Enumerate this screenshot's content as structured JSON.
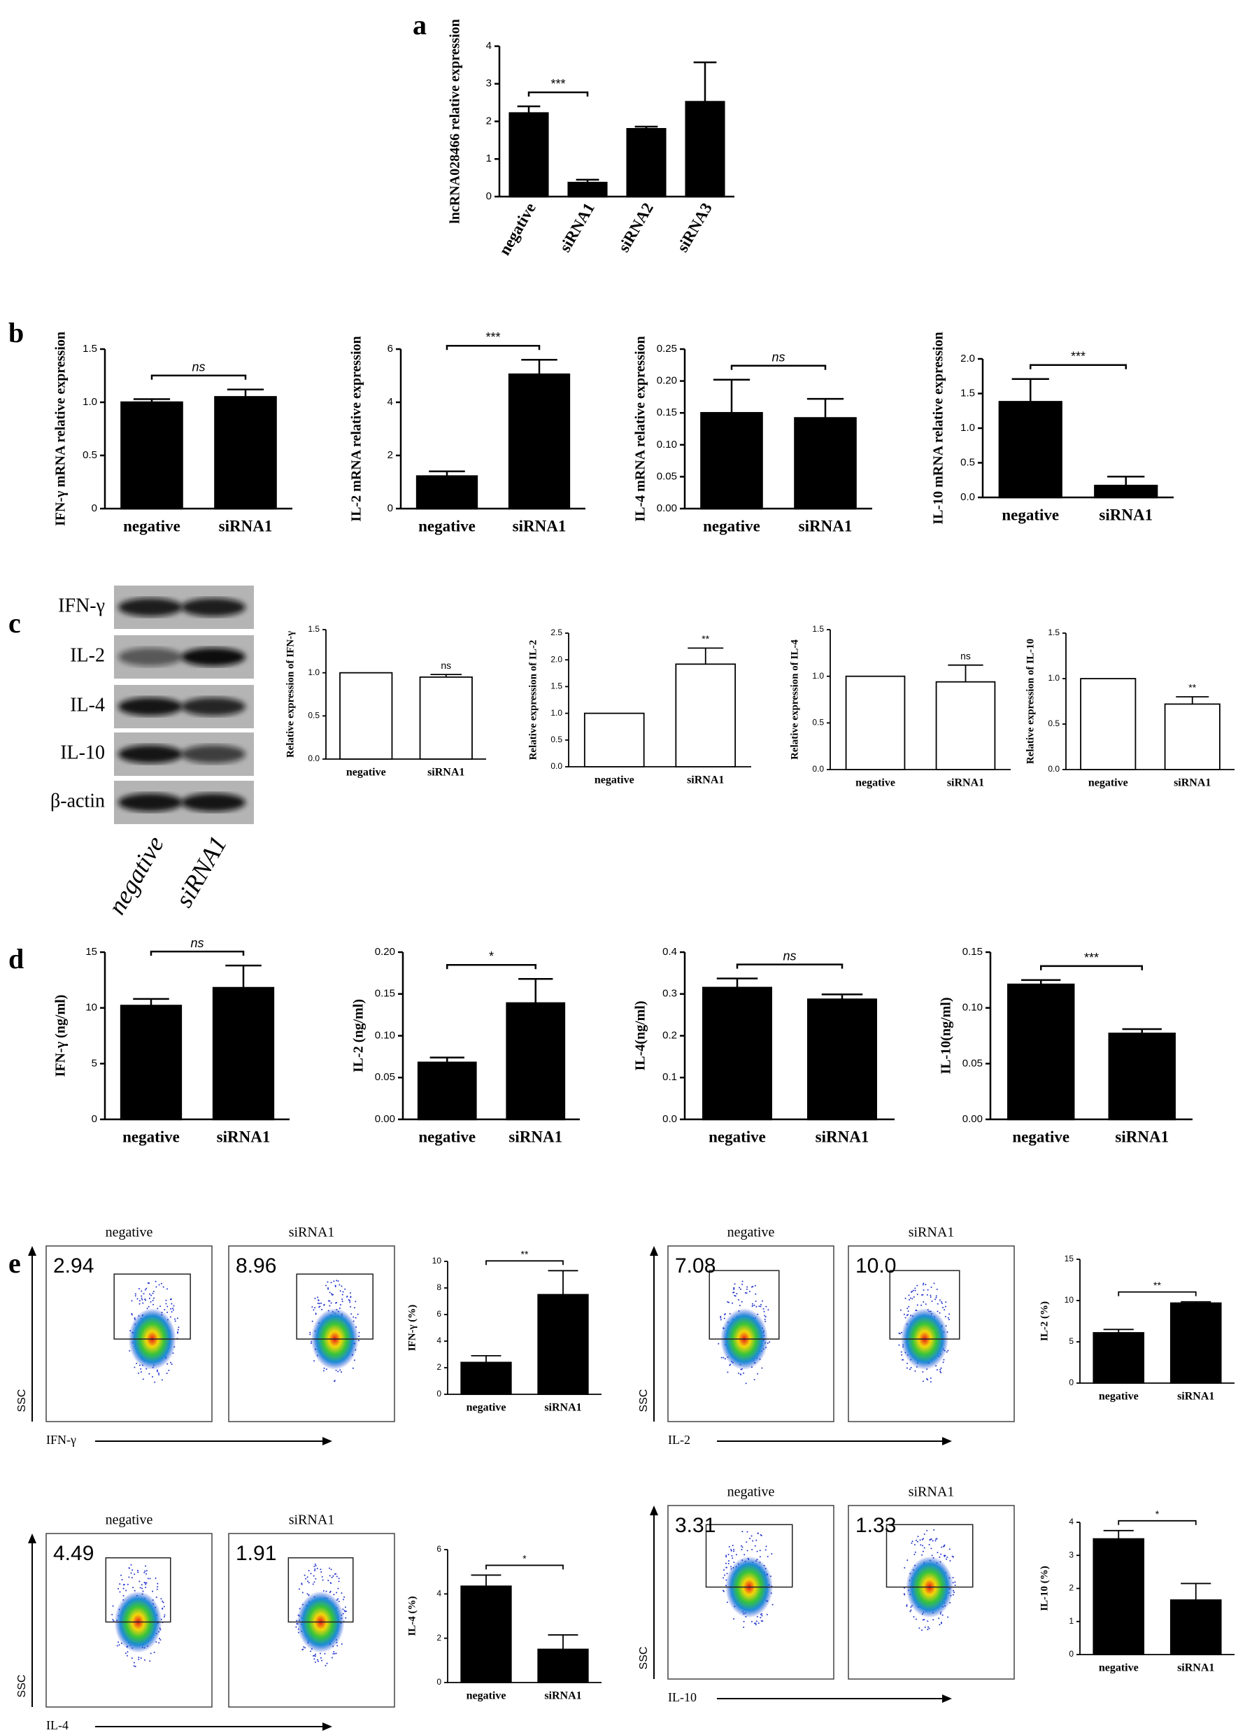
{
  "panel_labels": [
    "a",
    "b",
    "c",
    "d",
    "e"
  ],
  "chart_data": [
    {
      "type": "bar",
      "y_label": "lncRNA028466 relative expression",
      "categories": [
        "negative",
        "siRNA1",
        "siRNA2",
        "siRNA3"
      ],
      "values": [
        2.22,
        0.37,
        1.8,
        2.52
      ],
      "errors": [
        0.18,
        0.08,
        0.06,
        1.05
      ],
      "color": "#000000",
      "ylim": [
        0,
        4
      ],
      "yticks": [
        0,
        1,
        2,
        3,
        4
      ],
      "annotations": [
        {
          "text": "***",
          "bars": [
            0,
            1
          ]
        }
      ]
    },
    {
      "type": "bar",
      "y_label": "IFN-γ mRNA relative expression",
      "categories": [
        "negative",
        "siRNA1"
      ],
      "values": [
        1.0,
        1.05
      ],
      "errors": [
        0.03,
        0.07
      ],
      "color": "#000000",
      "ylim": [
        0,
        1.5
      ],
      "yticks": [
        0,
        0.5,
        {
          "value": 1,
          "label": "1.0"
        },
        1.5
      ],
      "annotations": [
        {
          "text": "ns",
          "bars": [
            0,
            1
          ]
        }
      ]
    },
    {
      "type": "bar",
      "y_label": "IL-2 mRNA  relative  expression",
      "categories": [
        "negative",
        "siRNA1"
      ],
      "values": [
        1.22,
        5.05
      ],
      "errors": [
        0.18,
        0.55
      ],
      "color": "#000000",
      "ylim": [
        0,
        6
      ],
      "yticks": [
        0,
        2,
        4,
        6
      ],
      "annotations": [
        {
          "text": "***",
          "bars": [
            0,
            1
          ]
        }
      ]
    },
    {
      "type": "bar",
      "y_label": "IL-4 mRNA  relative  expression",
      "categories": [
        "negative",
        "siRNA1"
      ],
      "values": [
        0.15,
        0.142
      ],
      "errors": [
        0.052,
        0.03
      ],
      "color": "#000000",
      "ylim": [
        0,
        0.25
      ],
      "yticks": [
        {
          "value": 0,
          "label": "0.00"
        },
        {
          "value": 0.05,
          "label": "0.05"
        },
        {
          "value": 0.1,
          "label": "0.10"
        },
        {
          "value": 0.15,
          "label": "0.15"
        },
        {
          "value": 0.2,
          "label": "0.20"
        },
        {
          "value": 0.25,
          "label": "0.25"
        }
      ],
      "annotations": [
        {
          "text": "ns",
          "bars": [
            0,
            1
          ]
        }
      ]
    },
    {
      "type": "bar",
      "y_label": "IL-10 mRNA  relative  expression",
      "categories": [
        "negative",
        "siRNA1"
      ],
      "values": [
        1.38,
        0.17
      ],
      "errors": [
        0.33,
        0.13
      ],
      "color": "#000000",
      "ylim": [
        0,
        2
      ],
      "yticks": [
        {
          "value": 0,
          "label": "0.0"
        },
        0.5,
        {
          "value": 1,
          "label": "1.0"
        },
        1.5,
        {
          "value": 2,
          "label": "2.0"
        }
      ],
      "annotations": [
        {
          "text": "***",
          "bars": [
            0,
            1
          ]
        }
      ]
    },
    {
      "type": "bar",
      "y_label": "Relative expression of IFN-γ",
      "categories": [
        "negative",
        "siRNA1"
      ],
      "values": [
        1.0,
        0.95
      ],
      "errors": [
        0,
        0.03
      ],
      "color": "#ffffff",
      "ylim": [
        0,
        1.5
      ],
      "yticks": [
        {
          "value": 0,
          "label": "0.0"
        },
        0.5,
        {
          "value": 1,
          "label": "1.0"
        },
        1.5
      ],
      "annotations": [
        {
          "text": "ns",
          "bars": [
            1
          ]
        }
      ]
    },
    {
      "type": "bar",
      "y_label": "Relative expression of IL-2",
      "categories": [
        "negative",
        "siRNA1"
      ],
      "values": [
        1.0,
        1.92
      ],
      "errors": [
        0,
        0.3
      ],
      "color": "#ffffff",
      "ylim": [
        0,
        2.5
      ],
      "yticks": [
        {
          "value": 0,
          "label": "0.0"
        },
        0.5,
        {
          "value": 1,
          "label": "1.0"
        },
        1.5,
        {
          "value": 2,
          "label": "2.0"
        },
        2.5
      ],
      "annotations": [
        {
          "text": "**",
          "bars": [
            1
          ]
        }
      ]
    },
    {
      "type": "bar",
      "y_label": "Relative expression of IL-4",
      "categories": [
        "negative",
        "siRNA1"
      ],
      "values": [
        1.0,
        0.94
      ],
      "errors": [
        0,
        0.18
      ],
      "color": "#ffffff",
      "ylim": [
        0,
        1.5
      ],
      "yticks": [
        {
          "value": 0,
          "label": "0.0"
        },
        0.5,
        {
          "value": 1,
          "label": "1.0"
        },
        1.5
      ],
      "annotations": [
        {
          "text": "ns",
          "bars": [
            1
          ]
        }
      ]
    },
    {
      "type": "bar",
      "y_label": "Relative expression of IL-10",
      "categories": [
        "negative",
        "siRNA1"
      ],
      "values": [
        1.0,
        0.72
      ],
      "errors": [
        0,
        0.08
      ],
      "color": "#ffffff",
      "ylim": [
        0,
        1.5
      ],
      "yticks": [
        {
          "value": 0,
          "label": "0.0"
        },
        0.5,
        {
          "value": 1,
          "label": "1.0"
        },
        1.5
      ],
      "annotations": [
        {
          "text": "**",
          "bars": [
            1
          ]
        }
      ]
    },
    {
      "type": "bar",
      "y_label": "IFN-γ (ng/ml)",
      "categories": [
        "negative",
        "siRNA1"
      ],
      "values": [
        10.2,
        11.8
      ],
      "errors": [
        0.6,
        2.0
      ],
      "color": "#000000",
      "ylim": [
        0,
        15
      ],
      "yticks": [
        0,
        5,
        10,
        15
      ],
      "annotations": [
        {
          "text": "ns",
          "bars": [
            0,
            1
          ]
        }
      ]
    },
    {
      "type": "bar",
      "y_label": "IL-2 (ng/ml)",
      "categories": [
        "negative",
        "siRNA1"
      ],
      "values": [
        0.068,
        0.139
      ],
      "errors": [
        0.006,
        0.029
      ],
      "color": "#000000",
      "ylim": [
        0,
        0.2
      ],
      "yticks": [
        {
          "value": 0,
          "label": "0.00"
        },
        {
          "value": 0.05,
          "label": "0.05"
        },
        {
          "value": 0.1,
          "label": "0.10"
        },
        {
          "value": 0.15,
          "label": "0.15"
        },
        {
          "value": 0.2,
          "label": "0.20"
        }
      ],
      "annotations": [
        {
          "text": "*",
          "bars": [
            0,
            1
          ]
        }
      ]
    },
    {
      "type": "bar",
      "y_label": "IL-4(ng/ml)",
      "categories": [
        "negative",
        "siRNA1"
      ],
      "values": [
        0.315,
        0.287
      ],
      "errors": [
        0.022,
        0.012
      ],
      "color": "#000000",
      "ylim": [
        0,
        0.4
      ],
      "yticks": [
        {
          "value": 0,
          "label": "0.0"
        },
        0.1,
        0.2,
        0.3,
        0.4
      ],
      "annotations": [
        {
          "text": "ns",
          "bars": [
            0,
            1
          ]
        }
      ]
    },
    {
      "type": "bar",
      "y_label": "IL-10(ng/ml)",
      "categories": [
        "negative",
        "siRNA1"
      ],
      "values": [
        0.121,
        0.077
      ],
      "errors": [
        0.004,
        0.004
      ],
      "color": "#000000",
      "ylim": [
        0,
        0.15
      ],
      "yticks": [
        {
          "value": 0,
          "label": "0.00"
        },
        0.05,
        {
          "value": 0.1,
          "label": "0.10"
        },
        0.15
      ],
      "annotations": [
        {
          "text": "***",
          "bars": [
            0,
            1
          ]
        }
      ]
    },
    {
      "type": "bar",
      "y_label": "IFN-γ (%)",
      "categories": [
        "negative",
        "siRNA1"
      ],
      "values": [
        2.4,
        7.5
      ],
      "errors": [
        0.5,
        1.8
      ],
      "color": "#000000",
      "ylim": [
        0,
        10
      ],
      "yticks": [
        0,
        2,
        4,
        6,
        8,
        10
      ],
      "annotations": [
        {
          "text": "**",
          "bars": [
            0,
            1
          ]
        }
      ]
    },
    {
      "type": "bar",
      "y_label": "IL-2 (%)",
      "categories": [
        "negative",
        "siRNA1"
      ],
      "values": [
        6.1,
        9.7
      ],
      "errors": [
        0.4,
        0.15
      ],
      "color": "#000000",
      "ylim": [
        0,
        15
      ],
      "yticks": [
        0,
        5,
        10,
        15
      ],
      "annotations": [
        {
          "text": "**",
          "bars": [
            0,
            1
          ]
        }
      ]
    },
    {
      "type": "bar",
      "y_label": "IL-4  (%)",
      "categories": [
        "negative",
        "siRNA1"
      ],
      "values": [
        4.35,
        1.5
      ],
      "errors": [
        0.5,
        0.65
      ],
      "color": "#000000",
      "ylim": [
        0,
        6
      ],
      "yticks": [
        0,
        2,
        4,
        6
      ],
      "annotations": [
        {
          "text": "*",
          "bars": [
            0,
            1
          ]
        }
      ]
    },
    {
      "type": "bar",
      "y_label": "IL-10  (%)",
      "categories": [
        "negative",
        "siRNA1"
      ],
      "values": [
        3.5,
        1.65
      ],
      "errors": [
        0.25,
        0.5
      ],
      "color": "#000000",
      "ylim": [
        0,
        4
      ],
      "yticks": [
        0,
        1,
        2,
        3,
        4
      ],
      "annotations": [
        {
          "text": "*",
          "bars": [
            0,
            1
          ]
        }
      ]
    }
  ],
  "western_blot": {
    "bands": [
      "IFN-γ",
      "IL-2",
      "IL-4",
      "IL-10",
      "β-actin"
    ],
    "lanes": [
      "negative",
      "siRNA1"
    ]
  },
  "flow_panels": [
    {
      "columns": [
        "negative",
        "siRNA1"
      ],
      "percentages": [
        "2.94",
        "8.96"
      ],
      "y_label": "SSC",
      "x_label": "IFN-γ"
    },
    {
      "columns": [
        "negative",
        "siRNA1"
      ],
      "percentages": [
        "7.08",
        "10.0"
      ],
      "y_label": "SSC",
      "x_label": "IL-2"
    },
    {
      "columns": [
        "negative",
        "siRNA1"
      ],
      "percentages": [
        "4.49",
        "1.91"
      ],
      "y_label": "SSC",
      "x_label": "IL-4"
    },
    {
      "columns": [
        "negative",
        "siRNA1"
      ],
      "percentages": [
        "3.31",
        "1.33"
      ],
      "y_label": "SSC",
      "x_label": "IL-10"
    }
  ]
}
